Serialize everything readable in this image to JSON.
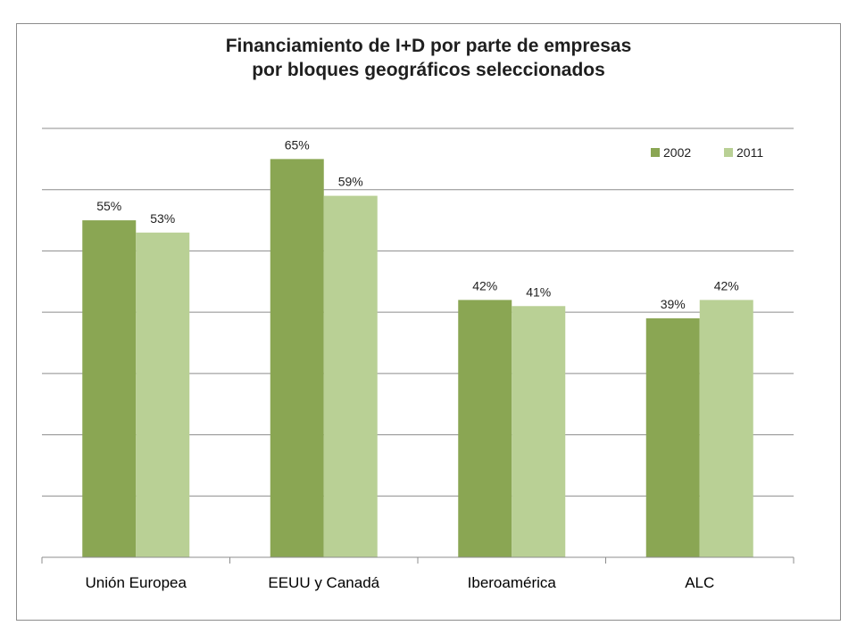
{
  "chart_data": {
    "type": "bar",
    "title_lines": [
      "Financiamiento de I+D por parte de empresas",
      "por bloques geográficos seleccionados"
    ],
    "categories": [
      "Unión Europea",
      "EEUU y Canadá",
      "Iberoamérica",
      "ALC"
    ],
    "series": [
      {
        "name": "2002",
        "values": [
          55,
          65,
          42,
          39
        ],
        "labels": [
          "55%",
          "65%",
          "42%",
          "39%"
        ],
        "color": "#8aa653"
      },
      {
        "name": "2011",
        "values": [
          53,
          59,
          41,
          42
        ],
        "labels": [
          "53%",
          "59%",
          "41%",
          "42%"
        ],
        "color": "#b9d095"
      }
    ],
    "ylim": [
      0,
      70
    ],
    "y_gridline_step": 10,
    "y_tick_labels_shown": false,
    "grid": true,
    "legend_position": "top-right",
    "colors": {
      "gridline": "#8c8c8c",
      "axis": "#8c8c8c"
    }
  }
}
